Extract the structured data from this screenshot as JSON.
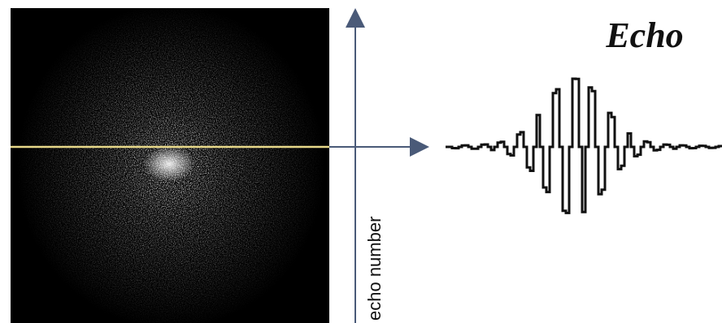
{
  "labels": {
    "title": "Echo",
    "axis": "echo number"
  }
}
